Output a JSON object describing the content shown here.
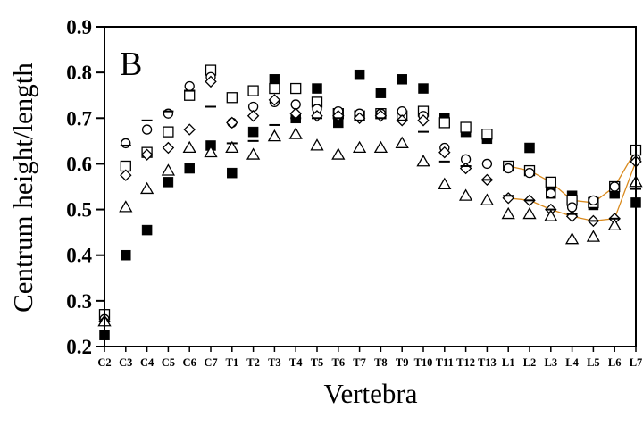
{
  "chart_data": {
    "type": "scatter",
    "panel_label": "B",
    "xlabel": "Vertebra",
    "ylabel": "Centrum height/length",
    "ylim": [
      0.2,
      0.9
    ],
    "yticks": [
      "0.2",
      "0.3",
      "0.4",
      "0.5",
      "0.6",
      "0.7",
      "0.8",
      "0.9"
    ],
    "categories": [
      "C2",
      "C3",
      "C4",
      "C5",
      "C6",
      "C7",
      "T1",
      "T2",
      "T3",
      "T4",
      "T5",
      "T6",
      "T7",
      "T8",
      "T9",
      "T10",
      "T11",
      "T12",
      "T13",
      "L1",
      "L2",
      "L3",
      "L4",
      "L5",
      "L6",
      "L7"
    ],
    "tick_labels": [
      "C2",
      "C3",
      "C4",
      "C5",
      "C6",
      "C7",
      "T1",
      "T2",
      "T3",
      "T4",
      "T5",
      "T6",
      "T7",
      "T8",
      "T9",
      "T10",
      "T11",
      "T12",
      "T13",
      "L1",
      "L2",
      "L3",
      "L4",
      "L5",
      "L6",
      "L7"
    ],
    "grid": false,
    "series": [
      {
        "marker": "filled-square",
        "values": [
          0.225,
          0.4,
          0.455,
          0.56,
          0.59,
          0.64,
          0.58,
          0.67,
          0.785,
          0.7,
          0.765,
          0.69,
          0.795,
          0.755,
          0.785,
          0.765,
          0.7,
          0.67,
          0.655,
          null,
          0.635,
          0.535,
          0.53,
          0.51,
          0.535,
          0.515
        ]
      },
      {
        "marker": "open-square",
        "values": [
          0.27,
          0.595,
          0.625,
          0.67,
          0.75,
          0.805,
          0.745,
          0.76,
          0.765,
          0.765,
          0.735,
          0.71,
          0.705,
          0.71,
          0.705,
          0.715,
          0.69,
          0.68,
          0.665,
          0.595,
          0.585,
          0.56,
          0.52,
          0.515,
          0.55,
          0.63
        ],
        "fit_line": true
      },
      {
        "marker": "open-circle",
        "values": [
          0.26,
          0.645,
          0.675,
          0.71,
          0.77,
          0.79,
          0.69,
          0.725,
          0.735,
          0.73,
          0.72,
          0.715,
          0.71,
          0.71,
          0.715,
          0.705,
          0.635,
          0.61,
          0.6,
          0.59,
          0.58,
          0.535,
          0.505,
          0.52,
          0.55,
          0.61
        ]
      },
      {
        "marker": "open-diamond",
        "values": [
          0.255,
          0.575,
          0.62,
          0.635,
          0.675,
          0.78,
          0.69,
          0.705,
          0.74,
          0.71,
          0.705,
          0.705,
          0.7,
          0.705,
          0.695,
          0.695,
          0.625,
          0.59,
          0.565,
          0.525,
          0.52,
          0.5,
          0.485,
          0.475,
          0.48,
          0.605
        ],
        "fit_line": true
      },
      {
        "marker": "dash",
        "values": [
          0.255,
          0.64,
          0.695,
          0.715,
          0.76,
          0.725,
          0.645,
          0.65,
          0.685,
          0.7,
          0.7,
          0.7,
          0.695,
          0.7,
          0.695,
          0.67,
          0.605,
          0.595,
          0.565,
          0.53,
          0.52,
          0.5,
          0.49,
          0.475,
          0.48,
          0.545
        ]
      },
      {
        "marker": "open-triangle",
        "values": [
          0.255,
          0.505,
          0.545,
          0.585,
          0.635,
          0.625,
          0.635,
          0.62,
          0.66,
          0.665,
          0.64,
          0.62,
          0.635,
          0.635,
          0.645,
          0.605,
          0.555,
          0.53,
          0.52,
          0.49,
          0.49,
          0.485,
          0.435,
          0.44,
          0.465,
          0.56
        ]
      }
    ]
  },
  "colors": {
    "fit_line": "#D98A1E",
    "marker": "#000000",
    "background": "#ffffff"
  }
}
